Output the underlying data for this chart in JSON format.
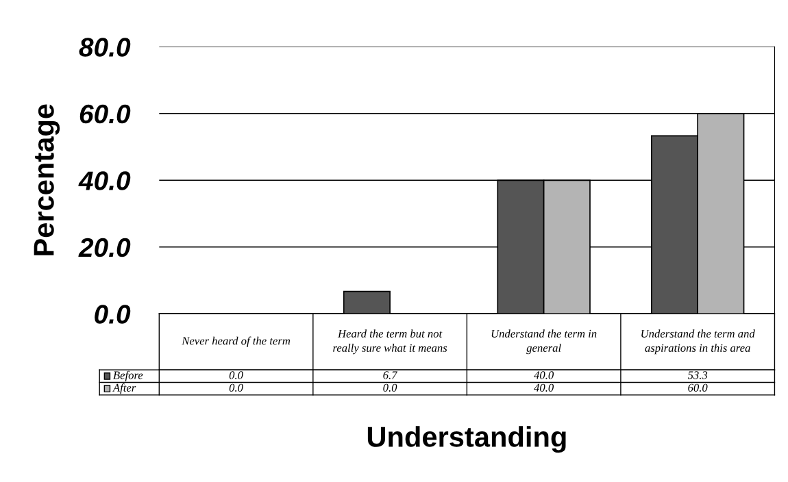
{
  "chart_data": {
    "type": "bar",
    "xlabel": "Understanding",
    "ylabel": "Percentage",
    "categories": [
      "Never heard of the term",
      "Heard the term but not really sure what it means",
      "Understand the term in general",
      "Understand the term and aspirations in this area"
    ],
    "series": [
      {
        "name": "Before",
        "color": "#555555",
        "values": [
          0.0,
          6.7,
          40.0,
          53.3
        ],
        "value_labels": [
          "0.0",
          "6.7",
          "40.0",
          "53.3"
        ]
      },
      {
        "name": "After",
        "color": "#b4b4b4",
        "values": [
          0.0,
          0.0,
          40.0,
          60.0
        ],
        "value_labels": [
          "0.0",
          "0.0",
          "40.0",
          "60.0"
        ]
      }
    ],
    "ylim": [
      0,
      80
    ],
    "yticks": [
      {
        "value": 0,
        "label": "0.0"
      },
      {
        "value": 20,
        "label": "20.0"
      },
      {
        "value": 40,
        "label": "40.0"
      },
      {
        "value": 60,
        "label": "60.0"
      },
      {
        "value": 80,
        "label": "80.0"
      }
    ],
    "grid": "y",
    "legend": "bottom"
  }
}
